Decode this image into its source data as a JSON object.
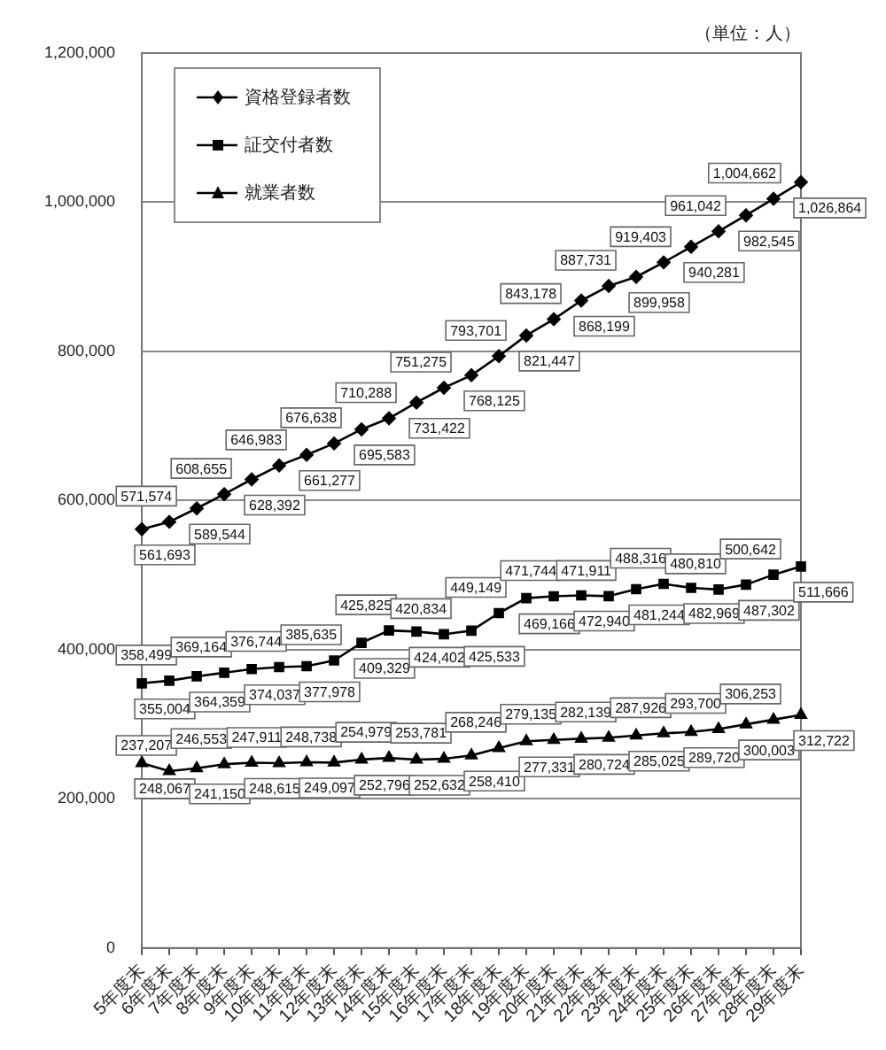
{
  "chart_data": {
    "type": "line",
    "categories": [
      "5年度末",
      "6年度末",
      "7年度末",
      "8年度末",
      "9年度末",
      "10年度末",
      "11年度末",
      "12年度末",
      "13年度末",
      "14年度末",
      "15年度末",
      "16年度末",
      "17年度末",
      "18年度末",
      "19年度末",
      "20年度末",
      "21年度末",
      "22年度末",
      "23年度末",
      "24年度末",
      "25年度末",
      "26年度末",
      "27年度末",
      "28年度末",
      "29年度末"
    ],
    "series": [
      {
        "name": "資格登録者数",
        "color": "#000000",
        "marker": "diamond",
        "values": [
          561693,
          571574,
          589544,
          608655,
          628392,
          646983,
          661277,
          676638,
          695583,
          710288,
          731422,
          751275,
          768125,
          793701,
          821447,
          843178,
          868199,
          887731,
          899958,
          919403,
          940281,
          961042,
          982545,
          1004662,
          1026864
        ],
        "value_labels": [
          "561,693",
          "571,574",
          "589,544",
          "608,655",
          "628,392",
          "646,983",
          "661,277",
          "676,638",
          "695,583",
          "710,288",
          "731,422",
          "751,275",
          "768,125",
          "793,701",
          "821,447",
          "843,178",
          "868,199",
          "887,731",
          "899,958",
          "919,403",
          "940,281",
          "961,042",
          "982,545",
          "1,004,662",
          "1,026,864"
        ]
      },
      {
        "name": "証交付者数",
        "color": "#000000",
        "marker": "square",
        "values": [
          355004,
          358499,
          364359,
          369164,
          374037,
          376744,
          377978,
          385635,
          409329,
          425825,
          424402,
          420834,
          425533,
          449149,
          469166,
          471744,
          472940,
          471911,
          481244,
          488316,
          482969,
          480810,
          487302,
          500642,
          511666
        ],
        "value_labels": [
          "355,004",
          "358,499",
          "364,359",
          "369,164",
          "374,037",
          "376,744",
          "377,978",
          "385,635",
          "409,329",
          "425,825",
          "424,402",
          "420,834",
          "425,533",
          "449,149",
          "469,166",
          "471,744",
          "472,940",
          "471,911",
          "481,244",
          "488,316",
          "482,969",
          "480,810",
          "487,302",
          "500,642",
          "511,666"
        ]
      },
      {
        "name": "就業者数",
        "color": "#000000",
        "marker": "triangle",
        "values": [
          248067,
          237207,
          241150,
          246553,
          248615,
          247911,
          249097,
          248738,
          252796,
          254979,
          252632,
          253781,
          258410,
          268246,
          277331,
          279135,
          280724,
          282139,
          285025,
          287926,
          289720,
          293700,
          300003,
          306253,
          312722
        ],
        "value_labels": [
          "248,067",
          "237,207",
          "241,150",
          "246,553",
          "248,615",
          "247,911",
          "249,097",
          "248,738",
          "252,796",
          "254,979",
          "252,632",
          "253,781",
          "258,410",
          "268,246",
          "277,331",
          "279,135",
          "280,724",
          "282,139",
          "285,025",
          "287,926",
          "289,720",
          "293,700",
          "300,003",
          "306,253",
          "312,722"
        ]
      }
    ],
    "ylim": [
      0,
      1200000
    ],
    "yticks": [
      0,
      {
        "value": 200000,
        "label": "200,000"
      },
      {
        "value": 400000,
        "label": "400,000"
      },
      {
        "value": 600000,
        "label": "600,000"
      },
      {
        "value": 800000,
        "label": "800,000"
      },
      {
        "value": 1000000,
        "label": "1,000,000"
      },
      {
        "value": 1200000,
        "label": "1,200,000"
      }
    ],
    "grid": "y",
    "legend": "top left",
    "line_style": "solid",
    "annotations": [
      "（単位：人）"
    ]
  }
}
